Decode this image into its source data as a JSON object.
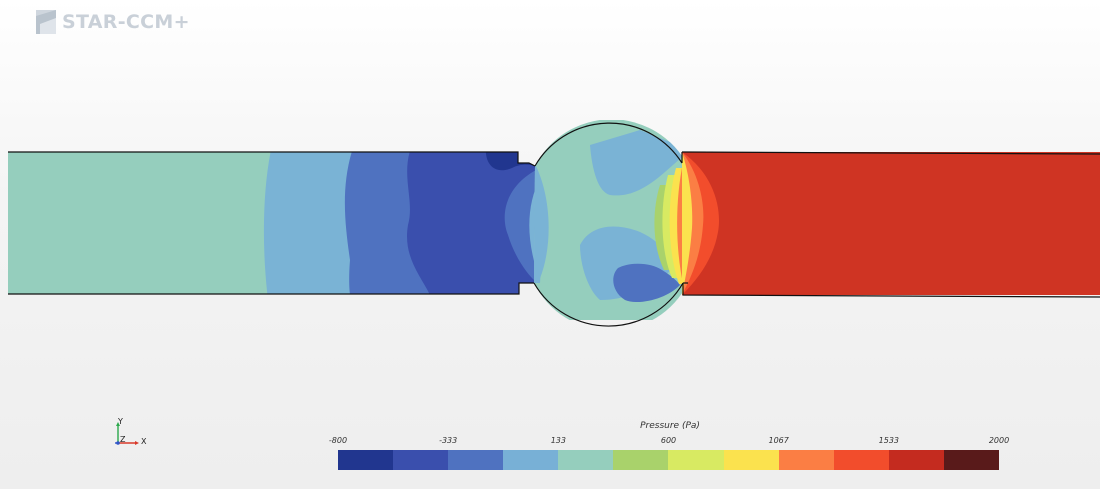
{
  "app": {
    "logo_text": "STAR-CCM+"
  },
  "triad": {
    "y_label": "Y",
    "z_label": "Z",
    "x_label": "X"
  },
  "legend": {
    "title": "Pressure (Pa)",
    "ticks": [
      "-800",
      "-333",
      "133",
      "600",
      "1067",
      "1533",
      "2000"
    ],
    "colors": [
      "#21368f",
      "#3a4fad",
      "#4f72c0",
      "#78b0d6",
      "#95cebd",
      "#a9d26b",
      "#d8ea62",
      "#fbe24e",
      "#fb7e44",
      "#f24d2c",
      "#c42b1f",
      "#591a1a"
    ]
  },
  "colors": {
    "inlet_field": "#95cebd",
    "outlet_field": "#cf3423",
    "wall": "#111111"
  }
}
